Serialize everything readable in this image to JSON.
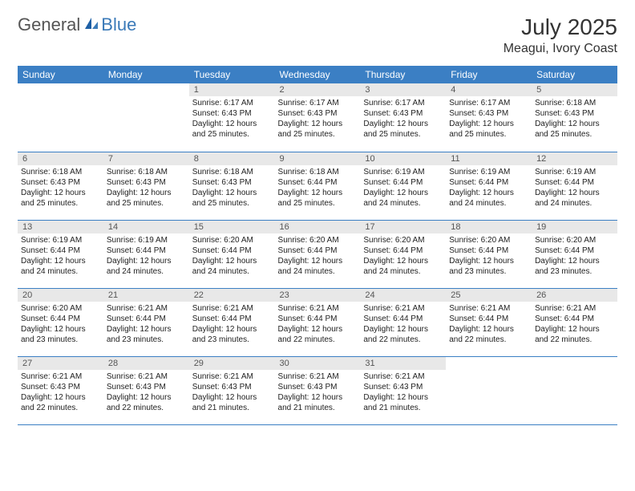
{
  "logo": {
    "general": "General",
    "blue": "Blue"
  },
  "title": "July 2025",
  "location": "Meagui, Ivory Coast",
  "colors": {
    "header_bg": "#3b7fc4",
    "header_fg": "#ffffff",
    "daynum_bg": "#e8e8e8",
    "rule": "#3b7fc4",
    "logo_gray": "#555555",
    "logo_blue": "#3a7ab8"
  },
  "weekdays": [
    "Sunday",
    "Monday",
    "Tuesday",
    "Wednesday",
    "Thursday",
    "Friday",
    "Saturday"
  ],
  "weeks": [
    [
      {
        "empty": true
      },
      {
        "empty": true
      },
      {
        "n": "1",
        "sr": "Sunrise: 6:17 AM",
        "ss": "Sunset: 6:43 PM",
        "d1": "Daylight: 12 hours",
        "d2": "and 25 minutes."
      },
      {
        "n": "2",
        "sr": "Sunrise: 6:17 AM",
        "ss": "Sunset: 6:43 PM",
        "d1": "Daylight: 12 hours",
        "d2": "and 25 minutes."
      },
      {
        "n": "3",
        "sr": "Sunrise: 6:17 AM",
        "ss": "Sunset: 6:43 PM",
        "d1": "Daylight: 12 hours",
        "d2": "and 25 minutes."
      },
      {
        "n": "4",
        "sr": "Sunrise: 6:17 AM",
        "ss": "Sunset: 6:43 PM",
        "d1": "Daylight: 12 hours",
        "d2": "and 25 minutes."
      },
      {
        "n": "5",
        "sr": "Sunrise: 6:18 AM",
        "ss": "Sunset: 6:43 PM",
        "d1": "Daylight: 12 hours",
        "d2": "and 25 minutes."
      }
    ],
    [
      {
        "n": "6",
        "sr": "Sunrise: 6:18 AM",
        "ss": "Sunset: 6:43 PM",
        "d1": "Daylight: 12 hours",
        "d2": "and 25 minutes."
      },
      {
        "n": "7",
        "sr": "Sunrise: 6:18 AM",
        "ss": "Sunset: 6:43 PM",
        "d1": "Daylight: 12 hours",
        "d2": "and 25 minutes."
      },
      {
        "n": "8",
        "sr": "Sunrise: 6:18 AM",
        "ss": "Sunset: 6:43 PM",
        "d1": "Daylight: 12 hours",
        "d2": "and 25 minutes."
      },
      {
        "n": "9",
        "sr": "Sunrise: 6:18 AM",
        "ss": "Sunset: 6:44 PM",
        "d1": "Daylight: 12 hours",
        "d2": "and 25 minutes."
      },
      {
        "n": "10",
        "sr": "Sunrise: 6:19 AM",
        "ss": "Sunset: 6:44 PM",
        "d1": "Daylight: 12 hours",
        "d2": "and 24 minutes."
      },
      {
        "n": "11",
        "sr": "Sunrise: 6:19 AM",
        "ss": "Sunset: 6:44 PM",
        "d1": "Daylight: 12 hours",
        "d2": "and 24 minutes."
      },
      {
        "n": "12",
        "sr": "Sunrise: 6:19 AM",
        "ss": "Sunset: 6:44 PM",
        "d1": "Daylight: 12 hours",
        "d2": "and 24 minutes."
      }
    ],
    [
      {
        "n": "13",
        "sr": "Sunrise: 6:19 AM",
        "ss": "Sunset: 6:44 PM",
        "d1": "Daylight: 12 hours",
        "d2": "and 24 minutes."
      },
      {
        "n": "14",
        "sr": "Sunrise: 6:19 AM",
        "ss": "Sunset: 6:44 PM",
        "d1": "Daylight: 12 hours",
        "d2": "and 24 minutes."
      },
      {
        "n": "15",
        "sr": "Sunrise: 6:20 AM",
        "ss": "Sunset: 6:44 PM",
        "d1": "Daylight: 12 hours",
        "d2": "and 24 minutes."
      },
      {
        "n": "16",
        "sr": "Sunrise: 6:20 AM",
        "ss": "Sunset: 6:44 PM",
        "d1": "Daylight: 12 hours",
        "d2": "and 24 minutes."
      },
      {
        "n": "17",
        "sr": "Sunrise: 6:20 AM",
        "ss": "Sunset: 6:44 PM",
        "d1": "Daylight: 12 hours",
        "d2": "and 24 minutes."
      },
      {
        "n": "18",
        "sr": "Sunrise: 6:20 AM",
        "ss": "Sunset: 6:44 PM",
        "d1": "Daylight: 12 hours",
        "d2": "and 23 minutes."
      },
      {
        "n": "19",
        "sr": "Sunrise: 6:20 AM",
        "ss": "Sunset: 6:44 PM",
        "d1": "Daylight: 12 hours",
        "d2": "and 23 minutes."
      }
    ],
    [
      {
        "n": "20",
        "sr": "Sunrise: 6:20 AM",
        "ss": "Sunset: 6:44 PM",
        "d1": "Daylight: 12 hours",
        "d2": "and 23 minutes."
      },
      {
        "n": "21",
        "sr": "Sunrise: 6:21 AM",
        "ss": "Sunset: 6:44 PM",
        "d1": "Daylight: 12 hours",
        "d2": "and 23 minutes."
      },
      {
        "n": "22",
        "sr": "Sunrise: 6:21 AM",
        "ss": "Sunset: 6:44 PM",
        "d1": "Daylight: 12 hours",
        "d2": "and 23 minutes."
      },
      {
        "n": "23",
        "sr": "Sunrise: 6:21 AM",
        "ss": "Sunset: 6:44 PM",
        "d1": "Daylight: 12 hours",
        "d2": "and 22 minutes."
      },
      {
        "n": "24",
        "sr": "Sunrise: 6:21 AM",
        "ss": "Sunset: 6:44 PM",
        "d1": "Daylight: 12 hours",
        "d2": "and 22 minutes."
      },
      {
        "n": "25",
        "sr": "Sunrise: 6:21 AM",
        "ss": "Sunset: 6:44 PM",
        "d1": "Daylight: 12 hours",
        "d2": "and 22 minutes."
      },
      {
        "n": "26",
        "sr": "Sunrise: 6:21 AM",
        "ss": "Sunset: 6:44 PM",
        "d1": "Daylight: 12 hours",
        "d2": "and 22 minutes."
      }
    ],
    [
      {
        "n": "27",
        "sr": "Sunrise: 6:21 AM",
        "ss": "Sunset: 6:43 PM",
        "d1": "Daylight: 12 hours",
        "d2": "and 22 minutes."
      },
      {
        "n": "28",
        "sr": "Sunrise: 6:21 AM",
        "ss": "Sunset: 6:43 PM",
        "d1": "Daylight: 12 hours",
        "d2": "and 22 minutes."
      },
      {
        "n": "29",
        "sr": "Sunrise: 6:21 AM",
        "ss": "Sunset: 6:43 PM",
        "d1": "Daylight: 12 hours",
        "d2": "and 21 minutes."
      },
      {
        "n": "30",
        "sr": "Sunrise: 6:21 AM",
        "ss": "Sunset: 6:43 PM",
        "d1": "Daylight: 12 hours",
        "d2": "and 21 minutes."
      },
      {
        "n": "31",
        "sr": "Sunrise: 6:21 AM",
        "ss": "Sunset: 6:43 PM",
        "d1": "Daylight: 12 hours",
        "d2": "and 21 minutes."
      },
      {
        "empty": true
      },
      {
        "empty": true
      }
    ]
  ]
}
